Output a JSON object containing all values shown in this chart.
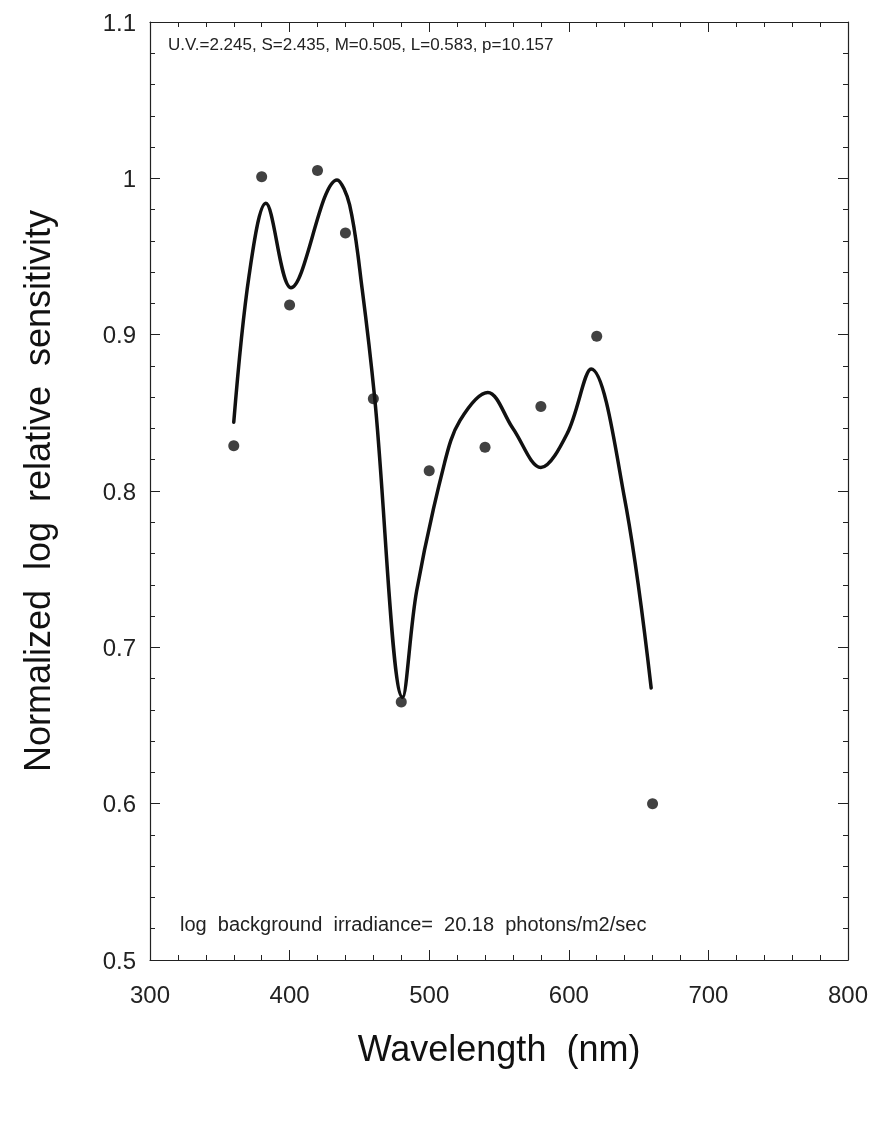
{
  "chart_data": {
    "type": "scatter",
    "xlabel": "Wavelength  (nm)",
    "ylabel": "Normalized  log  relative  sensitivity",
    "annotations": [
      "U.V.=2.245, S=2.435, M=0.505, L=0.583, p=10.157",
      "log  background  irradiance=  20.18  photons/m2/sec"
    ],
    "xlim": [
      300,
      800
    ],
    "xticks": [
      300,
      400,
      500,
      600,
      700,
      800
    ],
    "ylim": [
      0.5,
      1.1
    ],
    "yticks": [
      0.5,
      0.6,
      0.7,
      0.8,
      0.9,
      1,
      1.1
    ],
    "marker": "circle",
    "series": [
      {
        "type": "scatter",
        "color": "#111111",
        "x": [
          360,
          380,
          400,
          420,
          440,
          460,
          480,
          500,
          540,
          580,
          620,
          660
        ],
        "values": [
          0.829,
          1.001,
          0.919,
          1.005,
          0.965,
          0.859,
          0.665,
          0.813,
          0.828,
          0.854,
          0.899,
          0.6
        ]
      },
      {
        "type": "line",
        "color": "#111111",
        "line_style": "solid",
        "marker": "none",
        "x": [
          360,
          371,
          383,
          401,
          434,
          443,
          452,
          461,
          481,
          491,
          511,
          522,
          542,
          560,
          580,
          599,
          616,
          640,
          659
        ],
        "values": [
          0.844,
          0.938,
          0.984,
          0.93,
          0.999,
          0.983,
          0.929,
          0.859,
          0.668,
          0.736,
          0.818,
          0.845,
          0.863,
          0.84,
          0.815,
          0.837,
          0.878,
          0.795,
          0.674
        ]
      }
    ]
  }
}
